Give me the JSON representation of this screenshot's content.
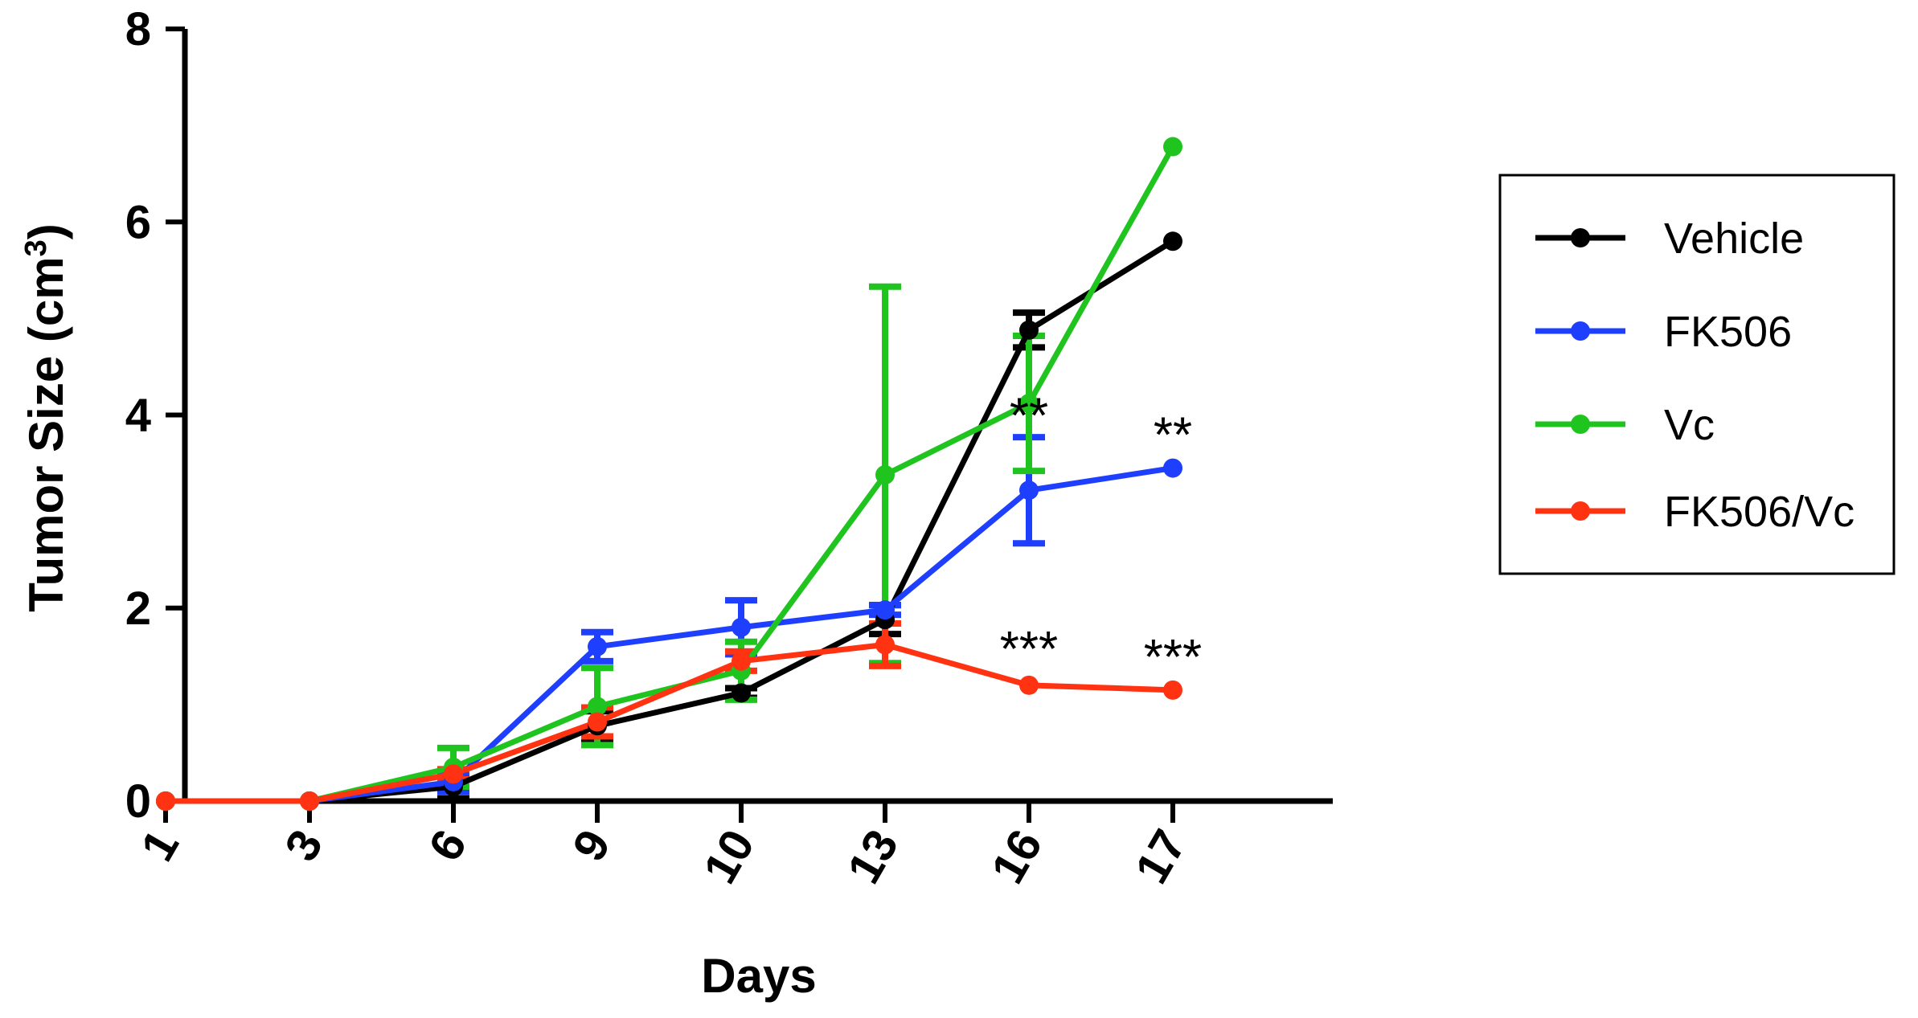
{
  "chart_data": {
    "type": "line",
    "xlabel": "Days",
    "ylabel": "Tumor Size (cm",
    "ylabel_superscript": "3",
    "ylabel_close": ")",
    "x_tick_labels": [
      "1",
      "3",
      "6",
      "9",
      "10",
      "13",
      "16",
      "17"
    ],
    "y_tick_labels": [
      "0",
      "2",
      "4",
      "6",
      "8"
    ],
    "y_ticks": [
      0,
      2,
      4,
      6,
      8
    ],
    "ylim": [
      0,
      8
    ],
    "grid": false,
    "legend_position": "right",
    "series": [
      {
        "name": "Vehicle",
        "color": "#000000",
        "values": [
          0,
          0,
          0.15,
          0.78,
          1.12,
          1.88,
          4.88,
          5.8
        ],
        "error": [
          0,
          0,
          0.12,
          0.15,
          0.05,
          0.15,
          0.18,
          0
        ]
      },
      {
        "name": "FK506",
        "color": "#1f3fff",
        "values": [
          0,
          0,
          0.2,
          1.6,
          1.8,
          1.98,
          3.22,
          3.45
        ],
        "error": [
          0,
          0,
          0.1,
          0.15,
          0.28,
          0.05,
          0.55,
          0
        ]
      },
      {
        "name": "Vc",
        "color": "#1fc41f",
        "values": [
          0,
          0,
          0.35,
          0.98,
          1.35,
          3.38,
          4.12,
          6.78
        ],
        "error": [
          0,
          0,
          0.2,
          0.4,
          0.3,
          1.95,
          0.7,
          0
        ]
      },
      {
        "name": "FK506/Vc",
        "color": "#ff3311",
        "values": [
          0,
          0,
          0.28,
          0.82,
          1.45,
          1.62,
          1.2,
          1.15
        ],
        "error": [
          0,
          0,
          0.05,
          0.15,
          0.1,
          0.22,
          0,
          0
        ]
      }
    ],
    "annotations": [
      {
        "text": "**",
        "x_index": 6,
        "y": 4.0
      },
      {
        "text": "**",
        "x_index": 7,
        "y": 3.8
      },
      {
        "text": "***",
        "x_index": 6,
        "y": 1.58
      },
      {
        "text": "***",
        "x_index": 7,
        "y": 1.5
      }
    ]
  }
}
